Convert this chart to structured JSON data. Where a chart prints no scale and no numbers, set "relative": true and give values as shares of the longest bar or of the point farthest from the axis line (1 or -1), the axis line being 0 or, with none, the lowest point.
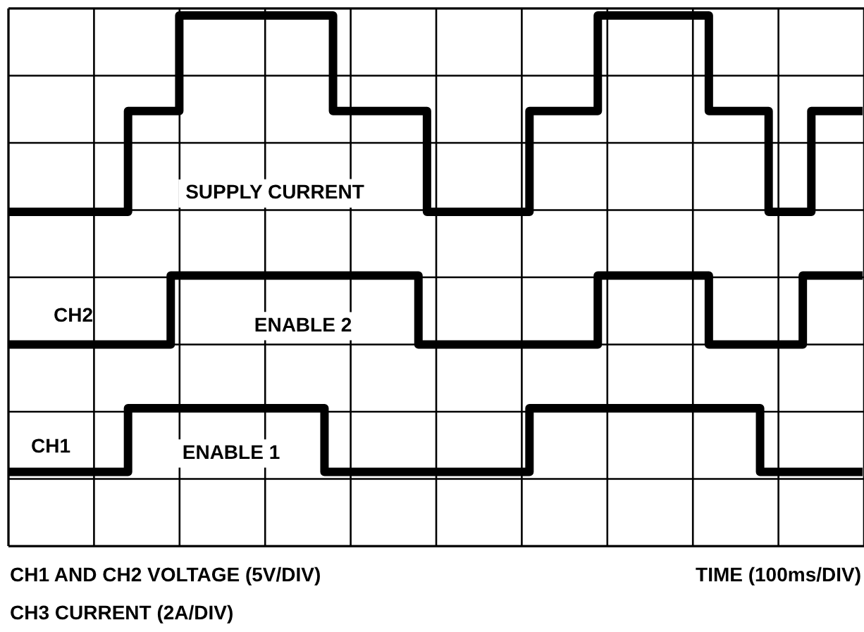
{
  "chart_data": {
    "type": "step",
    "relative": true,
    "grid": true,
    "xlabel": "TIME (100ms/DIV)",
    "categories": [
      null,
      null,
      null,
      null,
      null,
      null,
      null,
      null,
      null,
      null,
      null,
      null,
      null,
      null,
      null,
      null,
      null,
      null,
      null,
      null,
      null,
      null,
      null,
      null,
      null,
      null,
      null,
      null,
      null,
      null,
      null,
      null,
      null,
      null,
      null,
      null,
      null,
      null,
      null,
      null,
      null,
      null,
      null,
      null,
      null,
      null,
      null,
      null,
      null,
      null,
      null,
      null,
      null,
      null,
      null,
      null,
      null,
      null,
      null,
      null,
      null,
      null,
      null,
      null,
      null,
      null,
      null,
      null,
      null,
      null,
      null,
      null,
      null,
      null,
      null,
      null,
      null,
      null,
      null,
      null,
      null,
      null,
      null,
      null,
      null,
      null,
      null,
      null,
      null,
      null,
      null,
      null,
      null,
      null,
      null,
      null,
      null,
      null,
      null,
      null,
      null
    ],
    "series": [
      {
        "name": "SUPPLY CURRENT",
        "color": "#000000",
        "values": [
          0.63,
          0.63,
          0.63,
          0.63,
          0.63,
          0.63,
          0.63,
          0.63,
          0.63,
          0.63,
          0.63,
          0.63,
          0.63,
          0.63,
          0.82,
          0.82,
          0.82,
          0.82,
          0.82,
          0.82,
          1,
          1,
          1,
          1,
          1,
          1,
          1,
          1,
          1,
          1,
          1,
          1,
          1,
          1,
          1,
          1,
          1,
          1,
          0.82,
          0.82,
          0.82,
          0.82,
          0.82,
          0.82,
          0.82,
          0.82,
          0.82,
          0.82,
          0.82,
          0.63,
          0.63,
          0.63,
          0.63,
          0.63,
          0.63,
          0.63,
          0.63,
          0.63,
          0.63,
          0.63,
          0.63,
          0.82,
          0.82,
          0.82,
          0.82,
          0.82,
          0.82,
          0.82,
          0.82,
          1,
          1,
          1,
          1,
          1,
          1,
          1,
          1,
          1,
          1,
          1,
          1,
          1,
          0.82,
          0.82,
          0.82,
          0.82,
          0.82,
          0.82,
          0.82,
          0.63,
          0.63,
          0.63,
          0.63,
          0.63,
          0.82,
          0.82,
          0.82,
          0.82,
          0.82,
          0.82,
          0.82
        ]
      },
      {
        "name": "ENABLE 2",
        "color": "#000000",
        "values": [
          0.38,
          0.38,
          0.38,
          0.38,
          0.38,
          0.38,
          0.38,
          0.38,
          0.38,
          0.38,
          0.38,
          0.38,
          0.38,
          0.38,
          0.38,
          0.38,
          0.38,
          0.38,
          0.38,
          0.51,
          0.51,
          0.51,
          0.51,
          0.51,
          0.51,
          0.51,
          0.51,
          0.51,
          0.51,
          0.51,
          0.51,
          0.51,
          0.51,
          0.51,
          0.51,
          0.51,
          0.51,
          0.51,
          0.51,
          0.51,
          0.51,
          0.51,
          0.51,
          0.51,
          0.51,
          0.51,
          0.51,
          0.51,
          0.38,
          0.38,
          0.38,
          0.38,
          0.38,
          0.38,
          0.38,
          0.38,
          0.38,
          0.38,
          0.38,
          0.38,
          0.38,
          0.38,
          0.38,
          0.38,
          0.38,
          0.38,
          0.38,
          0.38,
          0.38,
          0.51,
          0.51,
          0.51,
          0.51,
          0.51,
          0.51,
          0.51,
          0.51,
          0.51,
          0.51,
          0.51,
          0.51,
          0.51,
          0.38,
          0.38,
          0.38,
          0.38,
          0.38,
          0.38,
          0.38,
          0.38,
          0.38,
          0.38,
          0.38,
          0.51,
          0.51,
          0.51,
          0.51,
          0.51,
          0.51,
          0.51,
          0.51
        ]
      },
      {
        "name": "ENABLE 1",
        "color": "#000000",
        "values": [
          0.14,
          0.14,
          0.14,
          0.14,
          0.14,
          0.14,
          0.14,
          0.14,
          0.14,
          0.14,
          0.14,
          0.14,
          0.14,
          0.14,
          0.26,
          0.26,
          0.26,
          0.26,
          0.26,
          0.26,
          0.26,
          0.26,
          0.26,
          0.26,
          0.26,
          0.26,
          0.26,
          0.26,
          0.26,
          0.26,
          0.26,
          0.26,
          0.26,
          0.26,
          0.26,
          0.26,
          0.26,
          0.14,
          0.14,
          0.14,
          0.14,
          0.14,
          0.14,
          0.14,
          0.14,
          0.14,
          0.14,
          0.14,
          0.14,
          0.14,
          0.14,
          0.14,
          0.14,
          0.14,
          0.14,
          0.14,
          0.14,
          0.14,
          0.14,
          0.14,
          0.14,
          0.26,
          0.26,
          0.26,
          0.26,
          0.26,
          0.26,
          0.26,
          0.26,
          0.26,
          0.26,
          0.26,
          0.26,
          0.26,
          0.26,
          0.26,
          0.26,
          0.26,
          0.26,
          0.26,
          0.26,
          0.26,
          0.26,
          0.26,
          0.26,
          0.26,
          0.26,
          0.26,
          0.14,
          0.14,
          0.14,
          0.14,
          0.14,
          0.14,
          0.14,
          0.14,
          0.14,
          0.14,
          0.14,
          0.14,
          0.14
        ]
      }
    ],
    "annotations": [
      "CH2",
      "CH1",
      "CH1 AND CH2 VOLTAGE (5V/DIV)",
      "CH3 CURRENT (2A/DIV)"
    ]
  }
}
